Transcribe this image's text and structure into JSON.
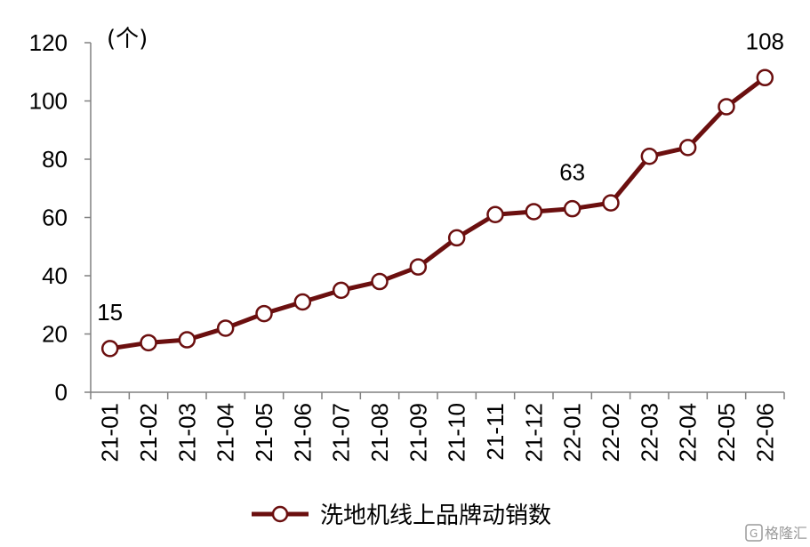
{
  "chart_data": {
    "type": "line",
    "y_unit_label": "(个)",
    "categories": [
      "21-01",
      "21-02",
      "21-03",
      "21-04",
      "21-05",
      "21-06",
      "21-07",
      "21-08",
      "21-09",
      "21-10",
      "21-11",
      "21-12",
      "22-01",
      "22-02",
      "22-03",
      "22-04",
      "22-05",
      "22-06"
    ],
    "series": [
      {
        "name": "洗地机线上品牌动销数",
        "color": "#6b0f0f",
        "values": [
          15,
          17,
          18,
          22,
          27,
          31,
          35,
          38,
          43,
          53,
          61,
          62,
          63,
          65,
          81,
          84,
          98,
          108
        ]
      }
    ],
    "data_labels": [
      {
        "index": 0,
        "text": "15"
      },
      {
        "index": 12,
        "text": "63"
      },
      {
        "index": 17,
        "text": "108"
      }
    ],
    "ylim": [
      0,
      120
    ],
    "yticks": [
      0,
      20,
      40,
      60,
      80,
      100,
      120
    ],
    "grid": false,
    "legend_position": "bottom-center",
    "watermark": "格隆汇"
  }
}
